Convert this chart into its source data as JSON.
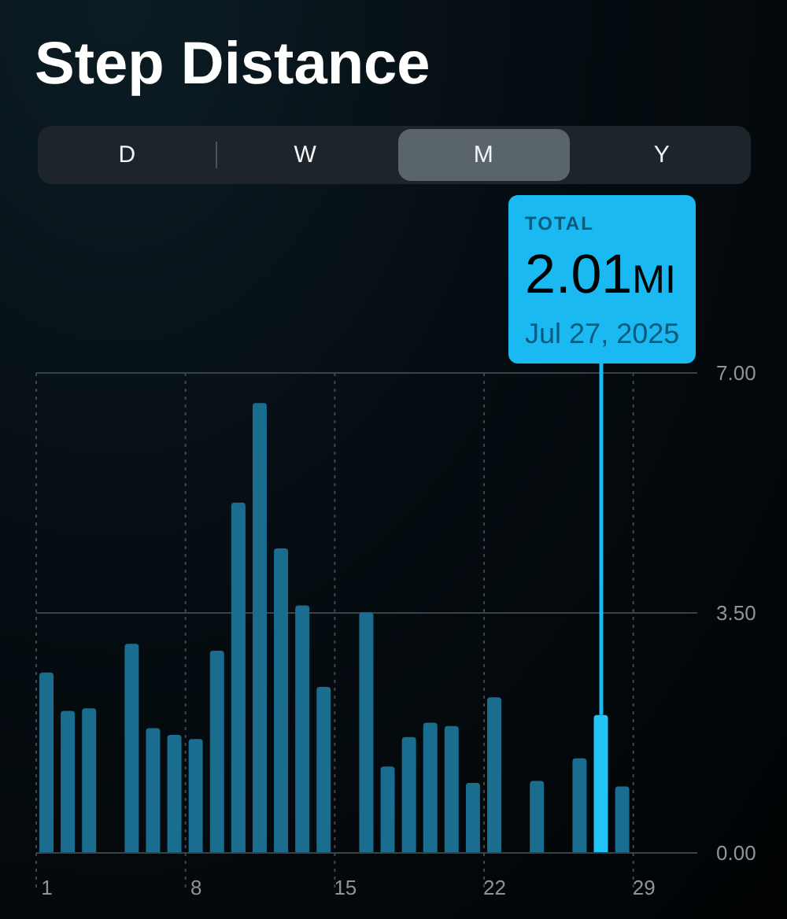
{
  "chart_data": {
    "type": "bar",
    "title": "Step Distance",
    "x": [
      1,
      2,
      3,
      4,
      5,
      6,
      7,
      8,
      9,
      10,
      11,
      12,
      13,
      14,
      15,
      16,
      17,
      18,
      19,
      20,
      21,
      22,
      23,
      24,
      25,
      26,
      27,
      28
    ],
    "values": [
      2.63,
      2.07,
      2.11,
      null,
      3.05,
      1.82,
      1.72,
      1.66,
      2.95,
      5.11,
      6.56,
      4.44,
      3.61,
      2.42,
      null,
      3.51,
      1.26,
      1.69,
      1.9,
      1.85,
      1.02,
      2.27,
      null,
      1.05,
      null,
      1.38,
      2.01,
      0.97
    ],
    "colors": [
      "#1b6d90",
      "#1b6d90",
      "#1b6d90",
      "#1b6d90",
      "#1b6d90",
      "#1b6d90",
      "#1b6d90",
      "#1b6d90",
      "#1b6d90",
      "#1b6d90",
      "#1b6d90",
      "#1b6d90",
      "#1b6d90",
      "#1b6d90",
      "#1b6d90",
      "#1b6d90",
      "#1b6d90",
      "#1b6d90",
      "#1b6d90",
      "#1b6d90",
      "#1b6d90",
      "#1b6d90",
      "#1b6d90",
      "#1b6d90",
      "#1b6d90",
      "#1b6d90",
      "#22c3f7",
      "#1b6d90"
    ],
    "xlim": [
      0.5,
      31.5
    ],
    "xticks": [
      1,
      8,
      15,
      22,
      29
    ],
    "ylim": [
      0,
      7
    ],
    "yticks": [
      {
        "value": 0,
        "label": "0.00"
      },
      {
        "value": 3.5,
        "label": "3.50"
      },
      {
        "value": 7,
        "label": "7.00"
      }
    ],
    "grid": true,
    "annotations": [
      "D",
      "W",
      "M",
      "Y",
      {
        "text": "TOTAL\n2.01MI\nJul 27, 2025",
        "x": 27,
        "y": 2.01
      }
    ]
  }
}
